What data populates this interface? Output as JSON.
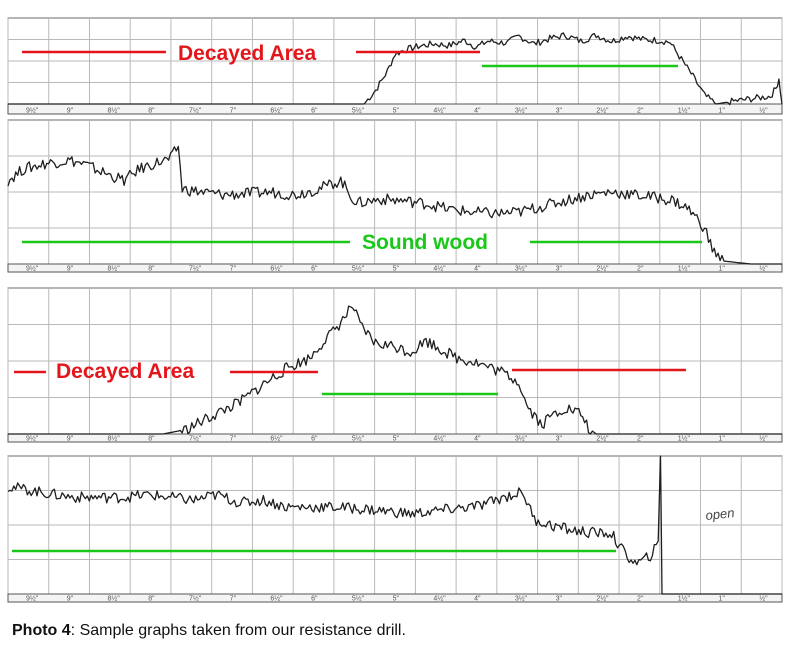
{
  "caption": {
    "label": "Photo 4",
    "text": ": Sample graphs taken from our resistance drill."
  },
  "colors": {
    "decay": "#e3161b",
    "sound": "#19c819",
    "trace": "#1f1f1f",
    "grid": "#b9b9b9",
    "paper": "#ffffff"
  },
  "chart_data": [
    {
      "type": "line",
      "panel": 1,
      "x_ticks": [
        "9½\"",
        "9\"",
        "8½\"",
        "8\"",
        "7½\"",
        "7\"",
        "6½\"",
        "6\"",
        "5½\"",
        "5\"",
        "4½\"",
        "4\"",
        "3½\"",
        "3\"",
        "2½\"",
        "2\"",
        "1½\"",
        "1\"",
        "½\""
      ],
      "xlim": [
        0,
        10
      ],
      "ylim": [
        0,
        100
      ],
      "trace": [
        [
          0,
          0
        ],
        [
          4.6,
          0
        ],
        [
          4.75,
          16
        ],
        [
          4.9,
          38
        ],
        [
          5.0,
          58
        ],
        [
          5.1,
          62
        ],
        [
          5.3,
          67
        ],
        [
          5.5,
          70
        ],
        [
          5.7,
          68
        ],
        [
          5.9,
          74
        ],
        [
          6.05,
          66
        ],
        [
          6.2,
          73
        ],
        [
          6.45,
          71
        ],
        [
          6.6,
          79
        ],
        [
          6.8,
          70
        ],
        [
          7.0,
          76
        ],
        [
          7.2,
          80
        ],
        [
          7.4,
          73
        ],
        [
          7.6,
          80
        ],
        [
          7.8,
          73
        ],
        [
          8.0,
          79
        ],
        [
          8.2,
          75
        ],
        [
          8.4,
          74
        ],
        [
          8.55,
          72
        ],
        [
          8.7,
          52
        ],
        [
          8.85,
          32
        ],
        [
          9.0,
          10
        ],
        [
          9.15,
          0
        ],
        [
          9.35,
          3
        ],
        [
          9.6,
          6
        ],
        [
          9.85,
          9
        ],
        [
          9.92,
          18
        ],
        [
          9.96,
          30
        ],
        [
          10.0,
          0
        ]
      ],
      "annotations": [
        {
          "text": "Decayed Area",
          "color": "decay"
        }
      ]
    },
    {
      "type": "line",
      "panel": 2,
      "x_ticks": [
        "9½\"",
        "9\"",
        "8½\"",
        "8\"",
        "7½\"",
        "7\"",
        "6½\"",
        "6\"",
        "5½\"",
        "5\"",
        "4½\"",
        "4\"",
        "3½\"",
        "3\"",
        "2½\"",
        "2\"",
        "1½\"",
        "1\"",
        "½\""
      ],
      "xlim": [
        0,
        10
      ],
      "ylim": [
        0,
        100
      ],
      "trace": [
        [
          0,
          58
        ],
        [
          0.2,
          66
        ],
        [
          0.5,
          70
        ],
        [
          0.8,
          72
        ],
        [
          1.0,
          69
        ],
        [
          1.3,
          62
        ],
        [
          1.5,
          58
        ],
        [
          1.7,
          66
        ],
        [
          1.9,
          70
        ],
        [
          2.1,
          73
        ],
        [
          2.2,
          82
        ],
        [
          2.25,
          52
        ],
        [
          2.5,
          50
        ],
        [
          2.8,
          48
        ],
        [
          3.1,
          49
        ],
        [
          3.4,
          50
        ],
        [
          3.7,
          48
        ],
        [
          4.0,
          52
        ],
        [
          4.3,
          58
        ],
        [
          4.5,
          42
        ],
        [
          4.8,
          45
        ],
        [
          5.1,
          44
        ],
        [
          5.4,
          42
        ],
        [
          5.7,
          38
        ],
        [
          6.0,
          36
        ],
        [
          6.3,
          35
        ],
        [
          6.6,
          36
        ],
        [
          6.9,
          40
        ],
        [
          7.2,
          44
        ],
        [
          7.5,
          48
        ],
        [
          7.8,
          50
        ],
        [
          8.1,
          48
        ],
        [
          8.4,
          46
        ],
        [
          8.6,
          44
        ],
        [
          8.8,
          38
        ],
        [
          9.0,
          25
        ],
        [
          9.1,
          10
        ],
        [
          9.25,
          2
        ],
        [
          9.6,
          0
        ],
        [
          10.0,
          0
        ]
      ],
      "annotations": [
        {
          "text": "Sound wood",
          "color": "sound"
        }
      ]
    },
    {
      "type": "line",
      "panel": 3,
      "x_ticks": [
        "9½\"",
        "9\"",
        "8½\"",
        "8\"",
        "7½\"",
        "7\"",
        "6½\"",
        "6\"",
        "5½\"",
        "5\"",
        "4½\"",
        "4\"",
        "3½\"",
        "3\"",
        "2½\"",
        "2\"",
        "1½\"",
        "1\"",
        "½\""
      ],
      "xlim": [
        0,
        10
      ],
      "ylim": [
        0,
        100
      ],
      "trace": [
        [
          0,
          0
        ],
        [
          2.0,
          0
        ],
        [
          2.3,
          3
        ],
        [
          2.7,
          14
        ],
        [
          3.0,
          22
        ],
        [
          3.3,
          34
        ],
        [
          3.6,
          45
        ],
        [
          3.9,
          52
        ],
        [
          4.05,
          62
        ],
        [
          4.2,
          70
        ],
        [
          4.35,
          80
        ],
        [
          4.45,
          88
        ],
        [
          4.55,
          74
        ],
        [
          4.75,
          62
        ],
        [
          5.0,
          60
        ],
        [
          5.2,
          56
        ],
        [
          5.4,
          64
        ],
        [
          5.6,
          58
        ],
        [
          5.8,
          52
        ],
        [
          6.0,
          50
        ],
        [
          6.2,
          46
        ],
        [
          6.4,
          42
        ],
        [
          6.6,
          36
        ],
        [
          6.7,
          20
        ],
        [
          6.9,
          6
        ],
        [
          7.0,
          12
        ],
        [
          7.2,
          18
        ],
        [
          7.4,
          14
        ],
        [
          7.5,
          4
        ],
        [
          7.6,
          0
        ],
        [
          10.0,
          0
        ]
      ],
      "annotations": [
        {
          "text": "Decayed Area",
          "color": "decay"
        }
      ]
    },
    {
      "type": "line",
      "panel": 4,
      "x_ticks": [
        "9½\"",
        "9\"",
        "8½\"",
        "8\"",
        "7½\"",
        "7\"",
        "6½\"",
        "6\"",
        "5½\"",
        "5\"",
        "4½\"",
        "4\"",
        "3½\"",
        "3\"",
        "2½\"",
        "2\"",
        "1½\"",
        "1\"",
        "½\""
      ],
      "xlim": [
        0,
        10
      ],
      "ylim": [
        0,
        100
      ],
      "trace": [
        [
          0,
          78
        ],
        [
          0.3,
          75
        ],
        [
          0.6,
          72
        ],
        [
          0.9,
          70
        ],
        [
          1.2,
          70
        ],
        [
          1.5,
          70
        ],
        [
          1.8,
          72
        ],
        [
          2.1,
          70
        ],
        [
          2.4,
          68
        ],
        [
          2.7,
          72
        ],
        [
          3.0,
          66
        ],
        [
          3.3,
          68
        ],
        [
          3.6,
          63
        ],
        [
          3.9,
          63
        ],
        [
          4.2,
          63
        ],
        [
          4.5,
          62
        ],
        [
          4.9,
          60
        ],
        [
          5.2,
          58
        ],
        [
          5.5,
          60
        ],
        [
          5.8,
          62
        ],
        [
          6.1,
          64
        ],
        [
          6.4,
          70
        ],
        [
          6.65,
          74
        ],
        [
          6.8,
          54
        ],
        [
          7.0,
          50
        ],
        [
          7.3,
          46
        ],
        [
          7.6,
          44
        ],
        [
          7.8,
          44
        ],
        [
          7.9,
          34
        ],
        [
          8.1,
          22
        ],
        [
          8.2,
          24
        ],
        [
          8.3,
          28
        ],
        [
          8.4,
          36
        ],
        [
          8.43,
          100
        ],
        [
          8.45,
          0
        ],
        [
          10.0,
          0
        ]
      ],
      "annotations": [
        {
          "text": "open",
          "color": "trace"
        }
      ]
    }
  ]
}
